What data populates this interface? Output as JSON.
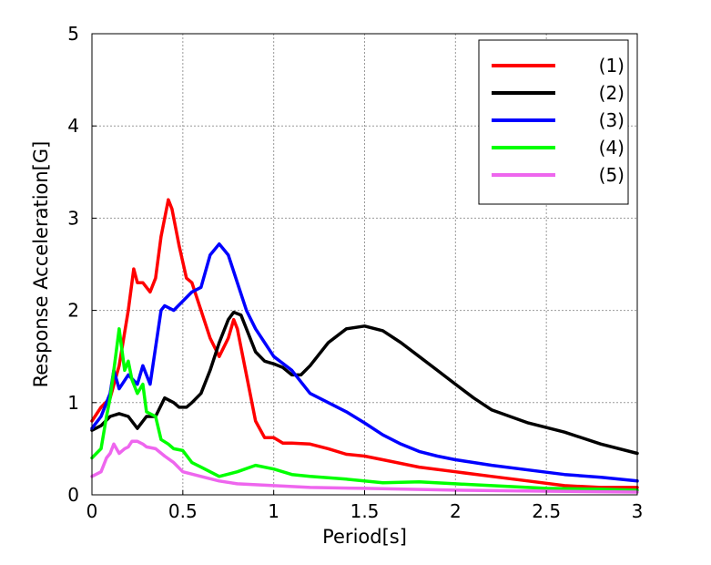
{
  "chart_data": {
    "type": "line",
    "title": "",
    "xlabel": "Period[s]",
    "ylabel": "Response Acceleration[G]",
    "xlim": [
      0,
      3
    ],
    "ylim": [
      0,
      5
    ],
    "xticks": [
      0,
      0.5,
      1,
      1.5,
      2,
      2.5,
      3
    ],
    "xtick_labels": [
      "0",
      "0.5",
      "1",
      "1.5",
      "2",
      "2.5",
      "3"
    ],
    "yticks": [
      0,
      1,
      2,
      3,
      4,
      5
    ],
    "ytick_labels": [
      "0",
      "1",
      "2",
      "3",
      "4",
      "5"
    ],
    "grid": true,
    "legend_position": "top-right",
    "series": [
      {
        "name": "(1)",
        "color": "#ff0000",
        "x": [
          0,
          0.05,
          0.1,
          0.15,
          0.2,
          0.23,
          0.25,
          0.28,
          0.32,
          0.35,
          0.38,
          0.42,
          0.44,
          0.48,
          0.52,
          0.55,
          0.6,
          0.65,
          0.7,
          0.75,
          0.78,
          0.8,
          0.85,
          0.9,
          0.95,
          1.0,
          1.05,
          1.1,
          1.2,
          1.3,
          1.4,
          1.5,
          1.6,
          1.8,
          2.0,
          2.2,
          2.4,
          2.6,
          2.8,
          3.0
        ],
        "y": [
          0.8,
          0.95,
          1.05,
          1.4,
          2.0,
          2.45,
          2.3,
          2.3,
          2.2,
          2.35,
          2.8,
          3.2,
          3.1,
          2.7,
          2.35,
          2.3,
          2.0,
          1.7,
          1.5,
          1.7,
          1.9,
          1.8,
          1.3,
          0.8,
          0.62,
          0.62,
          0.56,
          0.56,
          0.55,
          0.5,
          0.44,
          0.42,
          0.38,
          0.3,
          0.25,
          0.2,
          0.15,
          0.1,
          0.08,
          0.08
        ]
      },
      {
        "name": "(2)",
        "color": "#000000",
        "x": [
          0,
          0.05,
          0.1,
          0.15,
          0.2,
          0.25,
          0.3,
          0.35,
          0.4,
          0.45,
          0.48,
          0.52,
          0.55,
          0.6,
          0.65,
          0.7,
          0.75,
          0.78,
          0.82,
          0.86,
          0.9,
          0.95,
          1.0,
          1.05,
          1.1,
          1.15,
          1.2,
          1.3,
          1.4,
          1.5,
          1.6,
          1.7,
          1.8,
          1.9,
          2.0,
          2.1,
          2.2,
          2.3,
          2.4,
          2.6,
          2.8,
          3.0
        ],
        "y": [
          0.7,
          0.75,
          0.85,
          0.88,
          0.85,
          0.72,
          0.85,
          0.85,
          1.05,
          1.0,
          0.95,
          0.95,
          1.0,
          1.1,
          1.35,
          1.65,
          1.9,
          1.98,
          1.95,
          1.75,
          1.55,
          1.45,
          1.42,
          1.38,
          1.3,
          1.3,
          1.4,
          1.65,
          1.8,
          1.83,
          1.78,
          1.65,
          1.5,
          1.35,
          1.2,
          1.05,
          0.92,
          0.85,
          0.78,
          0.68,
          0.55,
          0.45
        ]
      },
      {
        "name": "(3)",
        "color": "#0000ff",
        "x": [
          0,
          0.05,
          0.1,
          0.12,
          0.15,
          0.2,
          0.25,
          0.28,
          0.32,
          0.35,
          0.38,
          0.4,
          0.45,
          0.5,
          0.55,
          0.6,
          0.65,
          0.7,
          0.75,
          0.8,
          0.85,
          0.9,
          0.95,
          1.0,
          1.1,
          1.2,
          1.3,
          1.4,
          1.5,
          1.6,
          1.7,
          1.8,
          1.9,
          2.0,
          2.2,
          2.4,
          2.6,
          2.8,
          3.0
        ],
        "y": [
          0.72,
          0.85,
          1.1,
          1.35,
          1.15,
          1.3,
          1.2,
          1.4,
          1.2,
          1.6,
          2.0,
          2.05,
          2.0,
          2.1,
          2.2,
          2.25,
          2.6,
          2.72,
          2.6,
          2.3,
          2.0,
          1.8,
          1.65,
          1.5,
          1.35,
          1.1,
          1.0,
          0.9,
          0.78,
          0.65,
          0.55,
          0.47,
          0.42,
          0.38,
          0.32,
          0.27,
          0.22,
          0.19,
          0.15
        ]
      },
      {
        "name": "(4)",
        "color": "#00ff00",
        "x": [
          0,
          0.05,
          0.08,
          0.1,
          0.13,
          0.15,
          0.18,
          0.2,
          0.22,
          0.25,
          0.28,
          0.3,
          0.35,
          0.38,
          0.42,
          0.45,
          0.5,
          0.55,
          0.6,
          0.65,
          0.7,
          0.8,
          0.9,
          1.0,
          1.1,
          1.2,
          1.4,
          1.6,
          1.8,
          2.0,
          2.2,
          2.5,
          2.8,
          3.0
        ],
        "y": [
          0.4,
          0.5,
          0.85,
          1.05,
          1.5,
          1.8,
          1.35,
          1.45,
          1.25,
          1.1,
          1.2,
          0.9,
          0.85,
          0.6,
          0.55,
          0.5,
          0.48,
          0.35,
          0.3,
          0.25,
          0.2,
          0.25,
          0.32,
          0.28,
          0.22,
          0.2,
          0.17,
          0.13,
          0.14,
          0.12,
          0.1,
          0.07,
          0.06,
          0.05
        ]
      },
      {
        "name": "(5)",
        "color": "#ee66ee",
        "x": [
          0,
          0.05,
          0.08,
          0.1,
          0.12,
          0.15,
          0.18,
          0.2,
          0.22,
          0.25,
          0.28,
          0.3,
          0.35,
          0.4,
          0.45,
          0.5,
          0.6,
          0.7,
          0.8,
          1.0,
          1.2,
          1.5,
          2.0,
          2.5,
          3.0
        ],
        "y": [
          0.2,
          0.25,
          0.4,
          0.45,
          0.55,
          0.45,
          0.5,
          0.52,
          0.58,
          0.58,
          0.55,
          0.52,
          0.5,
          0.42,
          0.35,
          0.25,
          0.2,
          0.15,
          0.12,
          0.1,
          0.08,
          0.07,
          0.05,
          0.04,
          0.03
        ]
      }
    ]
  }
}
